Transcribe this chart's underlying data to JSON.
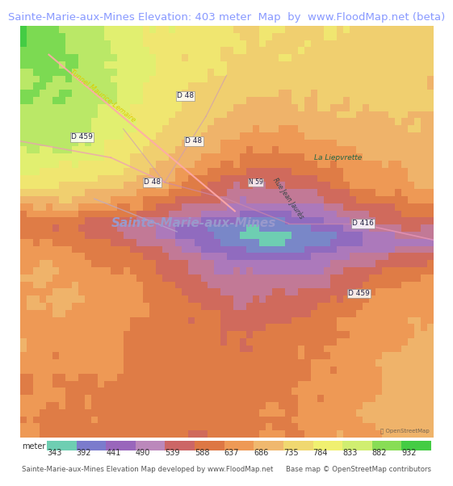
{
  "title": "Sainte-Marie-aux-Mines Elevation: 403 meter  Map  by  www.FloodMap.net (beta)",
  "title_color": "#8899ff",
  "title_fontsize": 9.5,
  "title_bg": "#f0f0ff",
  "colorbar_values": [
    343,
    392,
    441,
    490,
    539,
    588,
    637,
    686,
    735,
    784,
    833,
    882,
    932
  ],
  "colorbar_colors": [
    "#6eceb2",
    "#7b7bcc",
    "#9966bb",
    "#bb88bb",
    "#cc6666",
    "#dd7744",
    "#ee9955",
    "#f0b86e",
    "#f0d870",
    "#f0f070",
    "#d0ee70",
    "#88dd55",
    "#44cc44"
  ],
  "bottom_text_left": "Sainte-Marie-aux-Mines Elevation Map developed by www.FloodMap.net",
  "bottom_text_right": "Base map © OpenStreetMap contributors",
  "fig_width": 5.12,
  "fig_height": 5.82,
  "colorbar_label": "meter",
  "main_label": "Sainte-Marie-aux-Mines",
  "main_label_color": "#9999cc",
  "tunnel_label": "Tunnel Maurice-Lemaire",
  "street_label": "Rue Jean Jaurès",
  "la_liepvrette": "La Liepvrette",
  "vmin": 343,
  "vmax": 932
}
